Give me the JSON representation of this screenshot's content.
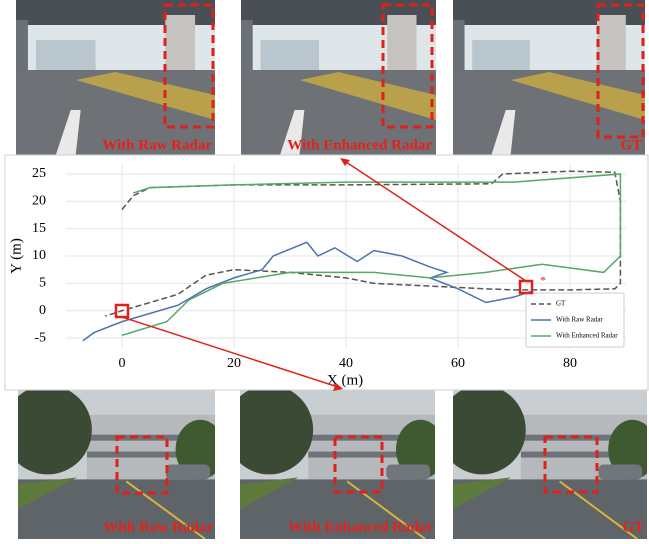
{
  "chart_data": {
    "type": "line",
    "xlabel": "X (m)",
    "ylabel": "Y (m)",
    "xlim": [
      -10,
      90
    ],
    "ylim": [
      -7,
      27
    ],
    "xticks": [
      0,
      20,
      40,
      60,
      80
    ],
    "yticks": [
      -5,
      0,
      5,
      10,
      15,
      20,
      25
    ],
    "grid": true,
    "legend": "lower right",
    "series": [
      {
        "name": "GT",
        "color": "#555555",
        "style": "dashed",
        "x": [
          0,
          2,
          5,
          20,
          40,
          66,
          68,
          80,
          88,
          89,
          89,
          88,
          80,
          70,
          65,
          55,
          45,
          40,
          30,
          20,
          15,
          10,
          5,
          0,
          -3
        ],
        "y": [
          18.5,
          21,
          22.5,
          23,
          23,
          23.2,
          25,
          25.5,
          25.3,
          20,
          5,
          4,
          3.8,
          3.8,
          4,
          4.5,
          5,
          6,
          7,
          7.5,
          6.5,
          3,
          1.5,
          0,
          -1
        ]
      },
      {
        "name": "With Raw Radar",
        "color": "#4c72b0",
        "style": "solid",
        "x": [
          -7,
          -5,
          0,
          10,
          15,
          20,
          25,
          27,
          33,
          35,
          38,
          42,
          45,
          50,
          55,
          58,
          55,
          60,
          65,
          70,
          73
        ],
        "y": [
          -5.5,
          -4,
          -2,
          1,
          4,
          6,
          7.5,
          10,
          12.5,
          10,
          11.5,
          9,
          11,
          10,
          8,
          7,
          6,
          4,
          1.5,
          2.5,
          3.5
        ]
      },
      {
        "name": "With Enhanced Radar",
        "color": "#55a868",
        "style": "solid",
        "x": [
          0,
          8,
          12,
          18,
          30,
          45,
          55,
          65,
          75,
          86,
          89,
          89,
          70,
          40,
          20,
          5,
          2
        ],
        "y": [
          -4.5,
          -2,
          2,
          5,
          7,
          7,
          6,
          7,
          8.5,
          7,
          10,
          25,
          23.5,
          23.5,
          23,
          22.5,
          21.5
        ]
      }
    ]
  },
  "photos": {
    "top": [
      {
        "caption": "With Raw Radar"
      },
      {
        "caption": "With Enhanced Radar"
      },
      {
        "caption": "GT"
      }
    ],
    "bottom": [
      {
        "caption": "With Raw Radar"
      },
      {
        "caption": "With Enhanced Radar"
      },
      {
        "caption": "GT"
      }
    ]
  }
}
